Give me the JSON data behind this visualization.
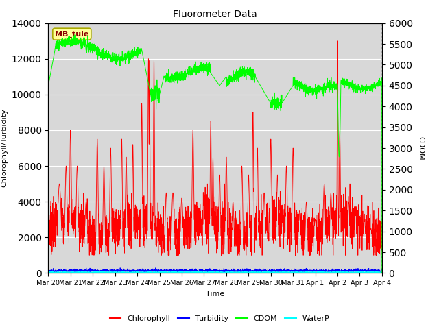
{
  "title": "Fluorometer Data",
  "xlabel": "Time",
  "ylabel_left": "Chlorophyll/Turbidity",
  "ylabel_right": "CDOM",
  "station_label": "MB_tule",
  "left_ylim": [
    0,
    14000
  ],
  "right_ylim": [
    0,
    6000
  ],
  "left_yticks": [
    0,
    2000,
    4000,
    6000,
    8000,
    10000,
    12000,
    14000
  ],
  "right_yticks": [
    0,
    500,
    1000,
    1500,
    2000,
    2500,
    3000,
    3500,
    4000,
    4500,
    5000,
    5500,
    6000
  ],
  "chlorophyll_color": "#ff0000",
  "turbidity_color": "#0000ff",
  "cdom_color": "#00ff00",
  "waterp_color": "#00ffff",
  "background_color": "#d8d8d8",
  "n_days": 15,
  "legend_labels": [
    "Chlorophyll",
    "Turbidity",
    "CDOM",
    "WaterP"
  ],
  "day_labels": [
    "Mar 20",
    "Mar 21",
    "Mar 22",
    "Mar 23",
    "Mar 24",
    "Mar 25",
    "Mar 26",
    "Mar 27",
    "Mar 28",
    "Mar 29",
    "Mar 30",
    "Mar 31",
    "Apr 1",
    "Apr 2",
    "Apr 3",
    "Apr 4"
  ]
}
